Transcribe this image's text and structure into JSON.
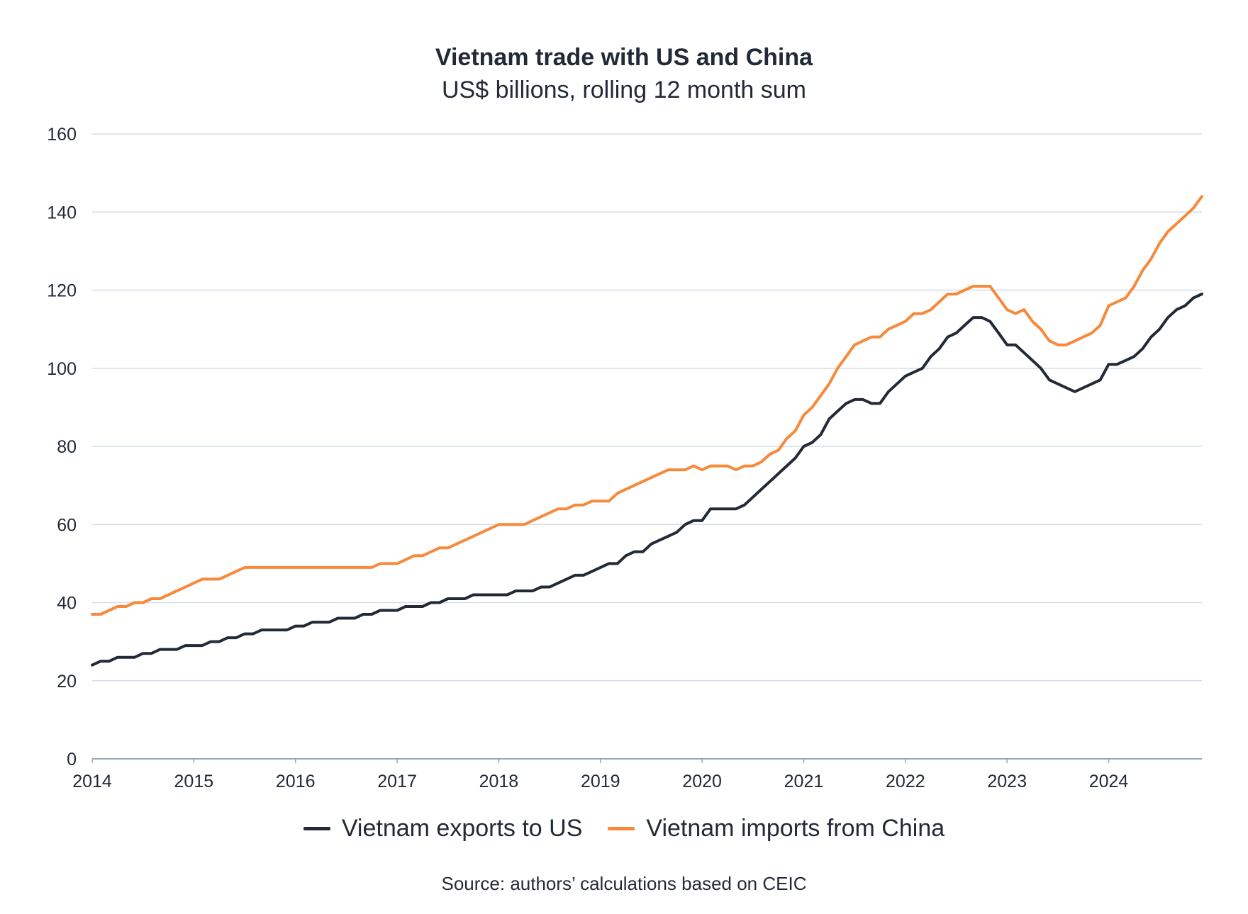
{
  "chart_data": {
    "type": "line",
    "title": "Vietnam trade with US and China",
    "subtitle": "US$ billions, rolling 12 month sum",
    "xlabel": "",
    "ylabel": "",
    "xlim": [
      2014,
      2024.917
    ],
    "ylim": [
      0,
      160
    ],
    "yticks": [
      "0",
      "20",
      "40",
      "60",
      "80",
      "100",
      "120",
      "140",
      "160"
    ],
    "xticks": [
      "2014",
      "2015",
      "2016",
      "2017",
      "2018",
      "2019",
      "2020",
      "2021",
      "2022",
      "2023",
      "2024"
    ],
    "grid": true,
    "legend_position": "bottom",
    "series": [
      {
        "name": "Vietnam exports to US",
        "color": "#222a36",
        "x": [
          2014.0,
          2014.083,
          2014.167,
          2014.25,
          2014.333,
          2014.417,
          2014.5,
          2014.583,
          2014.667,
          2014.75,
          2014.833,
          2014.917,
          2015.0,
          2015.083,
          2015.167,
          2015.25,
          2015.333,
          2015.417,
          2015.5,
          2015.583,
          2015.667,
          2015.75,
          2015.833,
          2015.917,
          2016.0,
          2016.083,
          2016.167,
          2016.25,
          2016.333,
          2016.417,
          2016.5,
          2016.583,
          2016.667,
          2016.75,
          2016.833,
          2016.917,
          2017.0,
          2017.083,
          2017.167,
          2017.25,
          2017.333,
          2017.417,
          2017.5,
          2017.583,
          2017.667,
          2017.75,
          2017.833,
          2017.917,
          2018.0,
          2018.083,
          2018.167,
          2018.25,
          2018.333,
          2018.417,
          2018.5,
          2018.583,
          2018.667,
          2018.75,
          2018.833,
          2018.917,
          2019.0,
          2019.083,
          2019.167,
          2019.25,
          2019.333,
          2019.417,
          2019.5,
          2019.583,
          2019.667,
          2019.75,
          2019.833,
          2019.917,
          2020.0,
          2020.083,
          2020.167,
          2020.25,
          2020.333,
          2020.417,
          2020.5,
          2020.583,
          2020.667,
          2020.75,
          2020.833,
          2020.917,
          2021.0,
          2021.083,
          2021.167,
          2021.25,
          2021.333,
          2021.417,
          2021.5,
          2021.583,
          2021.667,
          2021.75,
          2021.833,
          2021.917,
          2022.0,
          2022.083,
          2022.167,
          2022.25,
          2022.333,
          2022.417,
          2022.5,
          2022.583,
          2022.667,
          2022.75,
          2022.833,
          2022.917,
          2023.0,
          2023.083,
          2023.167,
          2023.25,
          2023.333,
          2023.417,
          2023.5,
          2023.583,
          2023.667,
          2023.75,
          2023.833,
          2023.917,
          2024.0,
          2024.083,
          2024.167,
          2024.25,
          2024.333,
          2024.417,
          2024.5,
          2024.583,
          2024.667,
          2024.75,
          2024.833,
          2024.917
        ],
        "values": [
          24,
          25,
          25,
          26,
          26,
          26,
          27,
          27,
          28,
          28,
          28,
          29,
          29,
          29,
          30,
          30,
          31,
          31,
          32,
          32,
          33,
          33,
          33,
          33,
          34,
          34,
          35,
          35,
          35,
          36,
          36,
          36,
          37,
          37,
          38,
          38,
          38,
          39,
          39,
          39,
          40,
          40,
          41,
          41,
          41,
          42,
          42,
          42,
          42,
          42,
          43,
          43,
          43,
          44,
          44,
          45,
          46,
          47,
          47,
          48,
          49,
          50,
          50,
          52,
          53,
          53,
          55,
          56,
          57,
          58,
          60,
          61,
          61,
          64,
          64,
          64,
          64,
          65,
          67,
          69,
          71,
          73,
          75,
          77,
          80,
          81,
          83,
          87,
          89,
          91,
          92,
          92,
          91,
          91,
          94,
          96,
          98,
          99,
          100,
          103,
          105,
          108,
          109,
          111,
          113,
          113,
          112,
          109,
          106,
          106,
          104,
          102,
          100,
          97,
          96,
          95,
          94,
          95,
          96,
          97,
          101,
          101,
          102,
          103,
          105,
          108,
          110,
          113,
          115,
          116,
          118,
          119
        ]
      },
      {
        "name": "Vietnam imports from China",
        "color": "#f7893a",
        "x": [
          2014.0,
          2014.083,
          2014.167,
          2014.25,
          2014.333,
          2014.417,
          2014.5,
          2014.583,
          2014.667,
          2014.75,
          2014.833,
          2014.917,
          2015.0,
          2015.083,
          2015.167,
          2015.25,
          2015.333,
          2015.417,
          2015.5,
          2015.583,
          2015.667,
          2015.75,
          2015.833,
          2015.917,
          2016.0,
          2016.083,
          2016.167,
          2016.25,
          2016.333,
          2016.417,
          2016.5,
          2016.583,
          2016.667,
          2016.75,
          2016.833,
          2016.917,
          2017.0,
          2017.083,
          2017.167,
          2017.25,
          2017.333,
          2017.417,
          2017.5,
          2017.583,
          2017.667,
          2017.75,
          2017.833,
          2017.917,
          2018.0,
          2018.083,
          2018.167,
          2018.25,
          2018.333,
          2018.417,
          2018.5,
          2018.583,
          2018.667,
          2018.75,
          2018.833,
          2018.917,
          2019.0,
          2019.083,
          2019.167,
          2019.25,
          2019.333,
          2019.417,
          2019.5,
          2019.583,
          2019.667,
          2019.75,
          2019.833,
          2019.917,
          2020.0,
          2020.083,
          2020.167,
          2020.25,
          2020.333,
          2020.417,
          2020.5,
          2020.583,
          2020.667,
          2020.75,
          2020.833,
          2020.917,
          2021.0,
          2021.083,
          2021.167,
          2021.25,
          2021.333,
          2021.417,
          2021.5,
          2021.583,
          2021.667,
          2021.75,
          2021.833,
          2021.917,
          2022.0,
          2022.083,
          2022.167,
          2022.25,
          2022.333,
          2022.417,
          2022.5,
          2022.583,
          2022.667,
          2022.75,
          2022.833,
          2022.917,
          2023.0,
          2023.083,
          2023.167,
          2023.25,
          2023.333,
          2023.417,
          2023.5,
          2023.583,
          2023.667,
          2023.75,
          2023.833,
          2023.917,
          2024.0,
          2024.083,
          2024.167,
          2024.25,
          2024.333,
          2024.417,
          2024.5,
          2024.583,
          2024.667,
          2024.75,
          2024.833,
          2024.917
        ],
        "values": [
          37,
          37,
          38,
          39,
          39,
          40,
          40,
          41,
          41,
          42,
          43,
          44,
          45,
          46,
          46,
          46,
          47,
          48,
          49,
          49,
          49,
          49,
          49,
          49,
          49,
          49,
          49,
          49,
          49,
          49,
          49,
          49,
          49,
          49,
          50,
          50,
          50,
          51,
          52,
          52,
          53,
          54,
          54,
          55,
          56,
          57,
          58,
          59,
          60,
          60,
          60,
          60,
          61,
          62,
          63,
          64,
          64,
          65,
          65,
          66,
          66,
          66,
          68,
          69,
          70,
          71,
          72,
          73,
          74,
          74,
          74,
          75,
          74,
          75,
          75,
          75,
          74,
          75,
          75,
          76,
          78,
          79,
          82,
          84,
          88,
          90,
          93,
          96,
          100,
          103,
          106,
          107,
          108,
          108,
          110,
          111,
          112,
          114,
          114,
          115,
          117,
          119,
          119,
          120,
          121,
          121,
          121,
          118,
          115,
          114,
          115,
          112,
          110,
          107,
          106,
          106,
          107,
          108,
          109,
          111,
          116,
          117,
          118,
          121,
          125,
          128,
          132,
          135,
          137,
          139,
          141,
          144
        ]
      }
    ]
  },
  "source_note": "Source: authors’ calculations based on CEIC"
}
